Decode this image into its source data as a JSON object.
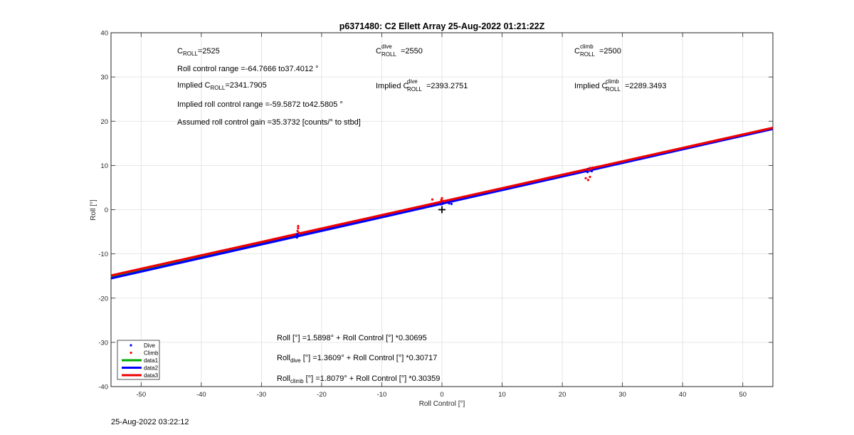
{
  "chart_data": {
    "type": "scatter",
    "title": "p6371480: C2 Ellett Array 25-Aug-2022 01:21:22Z",
    "xlabel": "Roll Control [°]",
    "ylabel": "Roll [°]",
    "xlim": [
      -55,
      55
    ],
    "ylim": [
      -40,
      40
    ],
    "xticks": [
      -50,
      -40,
      -30,
      -20,
      -10,
      0,
      10,
      20,
      30,
      40,
      50
    ],
    "yticks": [
      -40,
      -30,
      -20,
      -10,
      0,
      10,
      20,
      30,
      40
    ],
    "grid": true,
    "legend_position": "bottom-left",
    "series": [
      {
        "name": "Dive",
        "kind": "points",
        "color": "#0000ff",
        "points": [
          [
            -24.1,
            -6.3
          ],
          [
            -24.0,
            -6.0
          ],
          [
            -23.9,
            -5.8
          ],
          [
            -24.2,
            -6.1
          ],
          [
            -24.0,
            -5.5
          ],
          [
            -23.8,
            -5.9
          ],
          [
            -24.1,
            -5.7
          ],
          [
            0.1,
            1.3
          ],
          [
            0.4,
            1.5
          ],
          [
            0.8,
            1.6
          ],
          [
            1.2,
            1.4
          ],
          [
            1.6,
            1.3
          ],
          [
            -0.2,
            1.2
          ],
          [
            0.2,
            1.7
          ],
          [
            24.2,
            8.5
          ],
          [
            24.5,
            8.8
          ],
          [
            24.7,
            9.0
          ],
          [
            24.3,
            9.2
          ],
          [
            24.9,
            8.7
          ],
          [
            24.6,
            9.4
          ]
        ]
      },
      {
        "name": "Climb",
        "kind": "points",
        "color": "#ff0000",
        "points": [
          [
            -23.9,
            -4.2
          ],
          [
            -23.9,
            -3.7
          ],
          [
            -24.0,
            -4.8
          ],
          [
            -23.8,
            -5.2
          ],
          [
            -0.1,
            2.2
          ],
          [
            0.0,
            2.6
          ],
          [
            0.2,
            2.0
          ],
          [
            0.4,
            1.9
          ],
          [
            -1.6,
            2.3
          ],
          [
            24.6,
            9.4
          ],
          [
            24.8,
            9.2
          ],
          [
            25.0,
            9.5
          ],
          [
            24.4,
            9.0
          ],
          [
            23.9,
            7.1
          ],
          [
            24.3,
            6.7
          ],
          [
            24.6,
            7.4
          ]
        ]
      },
      {
        "name": "data1",
        "kind": "line",
        "color": "#00aa00",
        "slope": 0.30695,
        "intercept": 1.5898,
        "x": [
          -55,
          55
        ]
      },
      {
        "name": "data2",
        "kind": "line",
        "color": "#0000ff",
        "slope": 0.30717,
        "intercept": 1.3609,
        "x": [
          -55,
          55
        ]
      },
      {
        "name": "data3",
        "kind": "line",
        "color": "#ee0000",
        "slope": 0.30359,
        "intercept": 1.8079,
        "x": [
          -55,
          55
        ]
      }
    ],
    "marker": {
      "x": 0,
      "y": 0,
      "symbol": "+"
    },
    "annotations": {
      "c_roll": {
        "main": "C",
        "sub": "ROLL",
        "value": "=2525"
      },
      "c_roll_dive": {
        "main": "C",
        "sub": "ROLL",
        "sup": "dive",
        "value": "=2550"
      },
      "c_roll_climb": {
        "main": "C",
        "sub": "ROLL",
        "sup": "climb",
        "value": "=2500"
      },
      "roll_control_range": "Roll control range =-64.7666 to37.4012 °",
      "implied_c_roll": {
        "prefix": "Implied C",
        "sub": "ROLL",
        "value": "=2341.7905"
      },
      "implied_c_roll_dive": {
        "prefix": "Implied C",
        "sub": "ROLL",
        "sup": "dive",
        "value": "=2393.2751"
      },
      "implied_c_roll_climb": {
        "prefix": "Implied C",
        "sub": "ROLL",
        "sup": "climb",
        "value": "=2289.3493"
      },
      "implied_roll_range": "Implied roll control range =-59.5872 to42.5805 °",
      "gain": "Assumed roll control gain =35.3732 [counts/° to stbd]",
      "eq_all": "Roll [°] =1.5898° + Roll Control [°] *0.30695",
      "eq_dive": {
        "main": "Roll",
        "sub": "dive",
        "rest": " [°] =1.3609° + Roll Control [°] *0.30717"
      },
      "eq_climb": {
        "main": "Roll",
        "sub": "climb",
        "rest": " [°] =1.8079° + Roll Control [°] *0.30359"
      }
    }
  },
  "footer": {
    "timestamp": "25-Aug-2022 03:22:12"
  }
}
